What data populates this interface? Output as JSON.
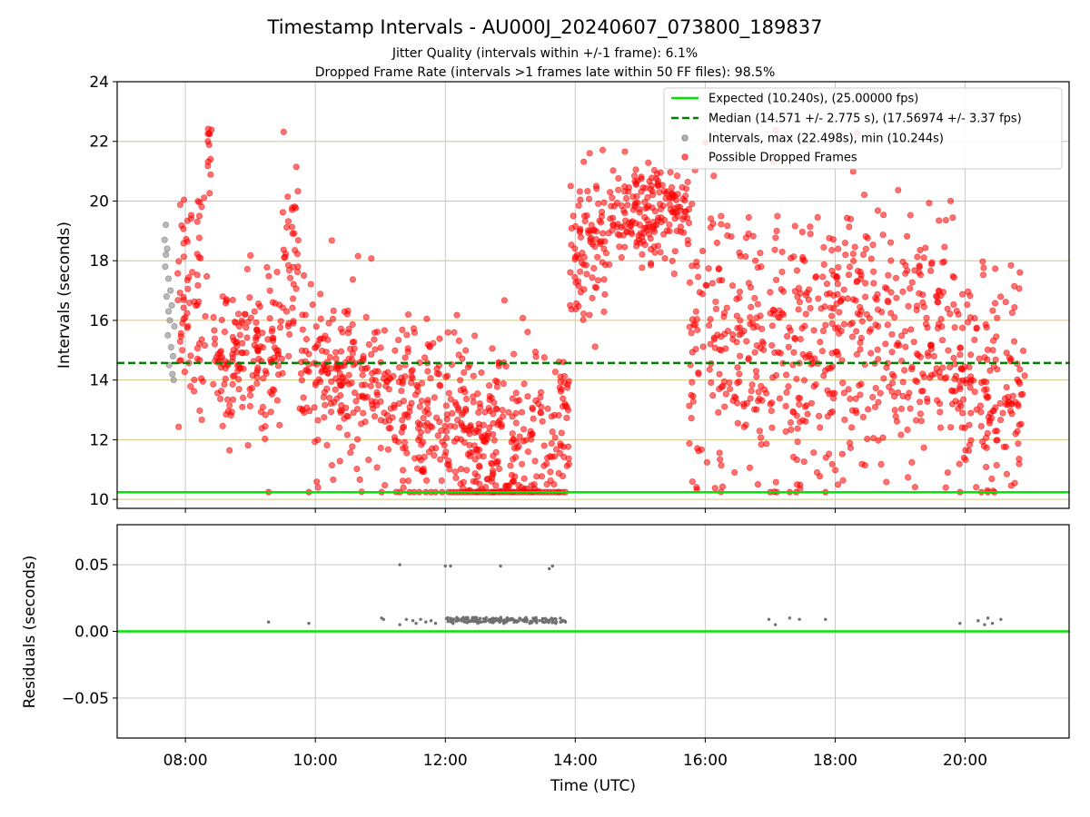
{
  "figure": {
    "title": "Timestamp Intervals - AU000J_20240607_073800_189837",
    "subtitle_lines": [
      "Jitter Quality (intervals within +/-1 frame): 6.1%",
      "Dropped Frame Rate (intervals >1 frames late within 50 FF files): 98.5%"
    ],
    "xlabel": "Time (UTC)"
  },
  "colors": {
    "expected": "#00e600",
    "median": "#008000",
    "intervals": "#808080",
    "dropped": "#ff0000",
    "grid_main": "#d4c48a",
    "grid_resid": "#c8c8c8"
  },
  "chart_data": [
    {
      "type": "scatter",
      "ylabel": "Intervals (seconds)",
      "xlim_hours": [
        6.95,
        21.6
      ],
      "ylim": [
        9.7,
        24
      ],
      "y_ticks": [
        10,
        12,
        14,
        16,
        18,
        20,
        22,
        24
      ],
      "x_ticks": [
        "08:00",
        "10:00",
        "12:00",
        "14:00",
        "16:00",
        "18:00",
        "20:00"
      ],
      "x_tick_hours": [
        8,
        10,
        12,
        14,
        16,
        18,
        20
      ],
      "grid": true,
      "legend_placement": "top-right",
      "legend": [
        "Expected (10.240s), (25.00000 fps)",
        "Median (14.571 +/- 2.775 s), (17.56974 +/- 3.37 fps)",
        "Intervals, max (22.498s), min (10.244s)",
        "Possible Dropped Frames"
      ],
      "expected_interval": 10.24,
      "median_interval": 14.571,
      "series": [
        {
          "name": "Intervals, max (22.498s), min (10.244s)",
          "time_range": [
            "07:40",
            "07:53"
          ],
          "value_range": [
            14.0,
            19.2
          ],
          "points": [
            [
              7.68,
              18.7
            ],
            [
              7.7,
              19.2
            ],
            [
              7.72,
              18.4
            ],
            [
              7.69,
              17.8
            ],
            [
              7.74,
              17.4
            ],
            [
              7.71,
              16.8
            ],
            [
              7.76,
              16.0
            ],
            [
              7.73,
              15.5
            ],
            [
              7.78,
              15.1
            ],
            [
              7.75,
              14.5
            ],
            [
              7.8,
              14.2
            ],
            [
              7.82,
              14.0
            ],
            [
              7.79,
              16.5
            ],
            [
              7.77,
              17.0
            ],
            [
              7.83,
              15.8
            ],
            [
              7.7,
              18.2
            ],
            [
              7.74,
              16.3
            ],
            [
              7.81,
              14.8
            ]
          ]
        },
        {
          "name": "Possible Dropped Frames",
          "time_range": [
            "07:52",
            "20:55"
          ],
          "value_range": [
            10.244,
            22.498
          ],
          "segments": [
            {
              "from": "07:52",
              "to": "08:20",
              "mean": 16.8,
              "spread": 1.8
            },
            {
              "from": "08:20",
              "to": "08:25",
              "mean": 21.5,
              "spread": 0.9
            },
            {
              "from": "08:25",
              "to": "09:30",
              "mean": 14.8,
              "spread": 1.2
            },
            {
              "from": "09:30",
              "to": "09:45",
              "mean": 18.0,
              "spread": 1.6
            },
            {
              "from": "09:45",
              "to": "11:00",
              "mean": 14.0,
              "spread": 1.4
            },
            {
              "from": "11:00",
              "to": "12:20",
              "mean": 12.8,
              "spread": 1.5
            },
            {
              "from": "12:20",
              "to": "13:55",
              "mean": 12.2,
              "spread": 1.6
            },
            {
              "from": "13:55",
              "to": "14:30",
              "mean": 18.3,
              "spread": 1.2
            },
            {
              "from": "14:30",
              "to": "15:45",
              "mean": 19.6,
              "spread": 0.8
            },
            {
              "from": "15:45",
              "to": "18:00",
              "mean": 15.0,
              "spread": 2.4
            },
            {
              "from": "18:00",
              "to": "19:50",
              "mean": 15.5,
              "spread": 2.3
            },
            {
              "from": "19:50",
              "to": "20:55",
              "mean": 13.8,
              "spread": 1.8
            }
          ],
          "floor_points_hours": [
            9.28,
            9.9,
            11.02,
            11.3,
            11.45,
            11.52,
            11.6,
            11.7,
            11.78,
            11.85,
            11.95,
            12.05,
            12.1,
            12.15,
            12.2,
            12.25,
            12.3,
            12.35,
            12.4,
            12.45,
            12.5,
            12.55,
            12.6,
            12.65,
            12.7,
            12.75,
            12.8,
            12.85,
            12.9,
            12.95,
            13.0,
            13.05,
            13.1,
            13.15,
            13.2,
            13.25,
            13.3,
            13.35,
            13.4,
            13.45,
            13.5,
            13.55,
            13.6,
            13.65,
            13.7,
            13.75,
            13.8,
            13.85,
            17.0,
            17.1,
            17.3,
            17.4,
            17.85,
            19.92,
            20.25,
            20.35,
            20.45
          ]
        }
      ]
    },
    {
      "type": "scatter",
      "ylabel": "Residuals (seconds)",
      "xlim_hours": [
        6.95,
        21.6
      ],
      "ylim": [
        -0.08,
        0.08
      ],
      "y_ticks": [
        -0.05,
        0.0,
        0.05
      ],
      "y_tick_labels": [
        "−0.05",
        "0.00",
        "0.05"
      ],
      "x_ticks": [
        "08:00",
        "10:00",
        "12:00",
        "14:00",
        "16:00",
        "18:00",
        "20:00"
      ],
      "x_tick_hours": [
        8,
        10,
        12,
        14,
        16,
        18,
        20
      ],
      "grid": true,
      "zero_line": 0.0,
      "points": [
        [
          9.28,
          0.007
        ],
        [
          9.9,
          0.006
        ],
        [
          11.02,
          0.01
        ],
        [
          11.05,
          0.009
        ],
        [
          11.3,
          0.05
        ],
        [
          11.3,
          0.005
        ],
        [
          11.4,
          0.009
        ],
        [
          11.5,
          0.008
        ],
        [
          11.55,
          0.006
        ],
        [
          11.62,
          0.009
        ],
        [
          11.7,
          0.007
        ],
        [
          11.78,
          0.008
        ],
        [
          11.85,
          0.006
        ],
        [
          12.0,
          0.049
        ],
        [
          12.08,
          0.049
        ],
        [
          12.05,
          0.008
        ],
        [
          12.12,
          0.006
        ],
        [
          12.2,
          0.009
        ],
        [
          12.3,
          0.007
        ],
        [
          12.4,
          0.008
        ],
        [
          12.5,
          0.006
        ],
        [
          12.6,
          0.009
        ],
        [
          12.7,
          0.007
        ],
        [
          12.85,
          0.049
        ],
        [
          12.8,
          0.008
        ],
        [
          12.9,
          0.006
        ],
        [
          13.0,
          0.009
        ],
        [
          13.1,
          0.007
        ],
        [
          13.2,
          0.008
        ],
        [
          13.3,
          0.006
        ],
        [
          13.4,
          0.009
        ],
        [
          13.5,
          0.007
        ],
        [
          13.6,
          0.047
        ],
        [
          13.65,
          0.049
        ],
        [
          13.6,
          0.008
        ],
        [
          13.7,
          0.006
        ],
        [
          13.8,
          0.008
        ],
        [
          13.85,
          0.007
        ],
        [
          16.98,
          0.009
        ],
        [
          17.08,
          0.005
        ],
        [
          17.3,
          0.01
        ],
        [
          17.45,
          0.009
        ],
        [
          17.85,
          0.009
        ],
        [
          19.92,
          0.006
        ],
        [
          20.2,
          0.008
        ],
        [
          20.3,
          0.005
        ],
        [
          20.35,
          0.01
        ],
        [
          20.42,
          0.006
        ],
        [
          20.55,
          0.009
        ]
      ]
    }
  ]
}
